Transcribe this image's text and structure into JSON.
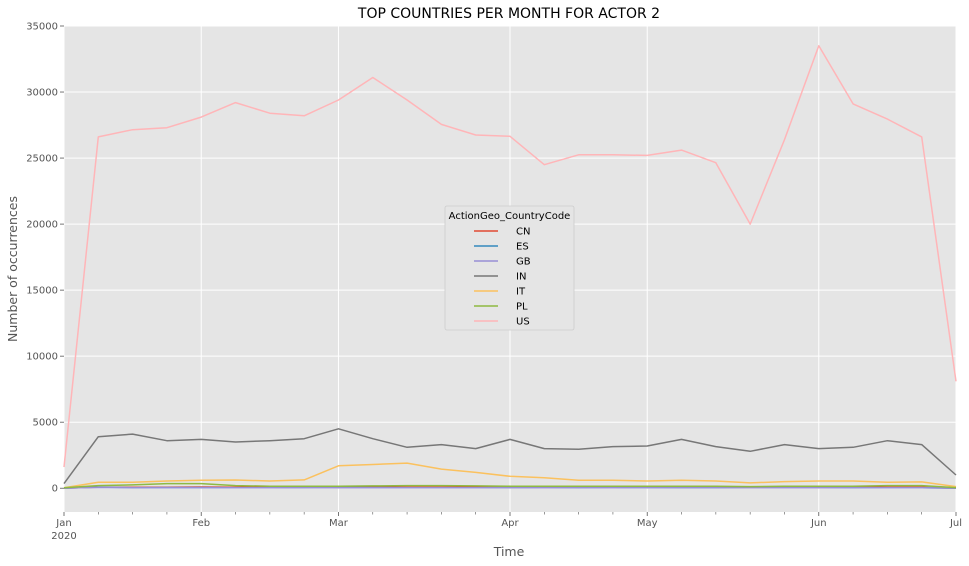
{
  "chart_data": {
    "type": "line",
    "title": "TOP COUNTRIES PER MONTH FOR ACTOR 2",
    "xlabel": "Time",
    "ylabel": "Number of occurrences",
    "ylim": [
      -1800,
      35000
    ],
    "y_ticks": [
      0,
      5000,
      10000,
      15000,
      20000,
      25000,
      30000,
      35000
    ],
    "x_tick_labels": [
      {
        "label": "Jan",
        "sublabel": "2020"
      },
      {
        "label": "Feb",
        "sublabel": ""
      },
      {
        "label": "Mar",
        "sublabel": ""
      },
      {
        "label": "Apr",
        "sublabel": ""
      },
      {
        "label": "May",
        "sublabel": ""
      },
      {
        "label": "Jun",
        "sublabel": ""
      },
      {
        "label": "Jul",
        "sublabel": ""
      }
    ],
    "x_weeks_span": [
      0,
      26
    ],
    "major_tick_weeks": [
      0,
      4,
      8,
      13,
      17,
      22,
      26
    ],
    "minor_tick_weeks": [
      1,
      2,
      3,
      5,
      6,
      7,
      9,
      10,
      11,
      12,
      14,
      15,
      16,
      18,
      19,
      20,
      21,
      23,
      24,
      25
    ],
    "grid": true,
    "legend": {
      "title": "ActionGeo_CountryCode",
      "placement": "center"
    },
    "series": [
      {
        "name": "CN",
        "color": "#E24A33",
        "values": [
          10,
          80,
          70,
          80,
          90,
          80,
          70,
          80,
          80,
          80,
          70,
          70,
          70,
          60,
          60,
          70,
          70,
          70,
          70,
          60,
          60,
          70,
          70,
          70,
          70,
          70,
          10
        ]
      },
      {
        "name": "ES",
        "color": "#348ABD",
        "values": [
          10,
          80,
          40,
          50,
          50,
          40,
          40,
          50,
          60,
          50,
          40,
          40,
          40,
          50,
          40,
          40,
          40,
          50,
          40,
          40,
          40,
          40,
          40,
          40,
          40,
          40,
          10
        ]
      },
      {
        "name": "GB",
        "color": "#988ED5",
        "values": [
          10,
          60,
          50,
          50,
          50,
          40,
          40,
          50,
          40,
          40,
          40,
          40,
          40,
          50,
          40,
          50,
          40,
          50,
          50,
          50,
          40,
          40,
          40,
          50,
          40,
          40,
          10
        ]
      },
      {
        "name": "IN",
        "color": "#777777",
        "values": [
          350,
          3900,
          4100,
          3600,
          3700,
          3500,
          3600,
          3750,
          4500,
          3750,
          3100,
          3300,
          3000,
          3700,
          3000,
          2950,
          3150,
          3200,
          3700,
          3150,
          2800,
          3300,
          3000,
          3100,
          3600,
          3300,
          1000
        ]
      },
      {
        "name": "IT",
        "color": "#FBC15E",
        "values": [
          30,
          450,
          450,
          550,
          600,
          620,
          550,
          630,
          1700,
          1800,
          1900,
          1450,
          1200,
          900,
          800,
          600,
          600,
          550,
          600,
          550,
          400,
          500,
          550,
          550,
          450,
          480,
          120
        ]
      },
      {
        "name": "PL",
        "color": "#8EBA42",
        "values": [
          30,
          200,
          250,
          350,
          350,
          200,
          150,
          150,
          150,
          180,
          200,
          200,
          180,
          150,
          150,
          150,
          150,
          150,
          150,
          150,
          120,
          150,
          150,
          150,
          200,
          200,
          50
        ]
      },
      {
        "name": "US",
        "color": "#FFB5B8",
        "values": [
          1600,
          26600,
          27150,
          27300,
          28100,
          29200,
          28400,
          28200,
          29400,
          31100,
          29400,
          27550,
          26750,
          26650,
          24500,
          25250,
          25250,
          25200,
          25600,
          24650,
          20000,
          26400,
          33500,
          29100,
          27950,
          26600,
          8100
        ]
      }
    ]
  }
}
